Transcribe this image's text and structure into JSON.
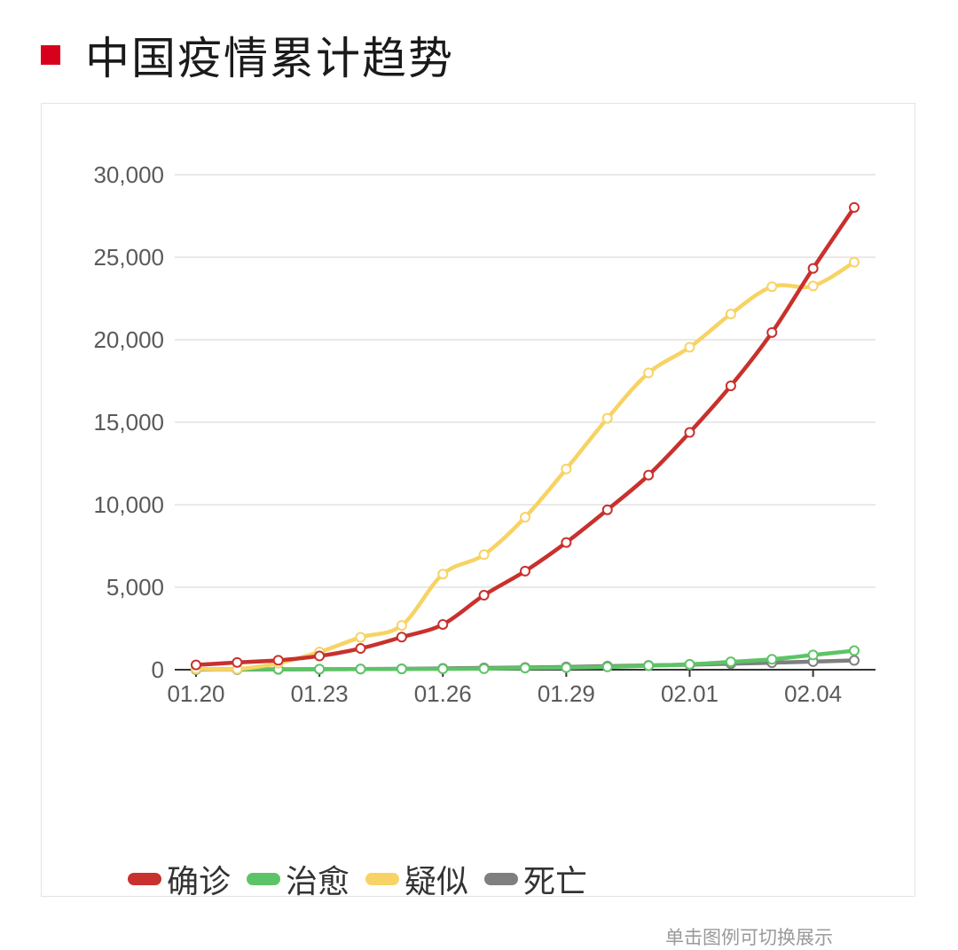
{
  "page": {
    "title": "中国疫情累计趋势",
    "accent_color": "#d9001b",
    "hint": "单击图例可切换展示"
  },
  "chart_data": {
    "type": "line",
    "x": [
      "01.20",
      "01.21",
      "01.22",
      "01.23",
      "01.24",
      "01.25",
      "01.26",
      "01.27",
      "01.28",
      "01.29",
      "01.30",
      "01.31",
      "02.01",
      "02.02",
      "02.03",
      "02.04",
      "02.05"
    ],
    "x_tick_labels": [
      "01.20",
      "01.23",
      "01.26",
      "01.29",
      "02.01",
      "02.04"
    ],
    "ylim": [
      0,
      30000
    ],
    "y_tick_labels": [
      "0",
      "5,000",
      "10,000",
      "15,000",
      "20,000",
      "25,000",
      "30,000"
    ],
    "y_ticks": [
      0,
      5000,
      10000,
      15000,
      20000,
      25000,
      30000
    ],
    "grid": true,
    "legend_position": "bottom-left",
    "series": [
      {
        "name": "确诊",
        "color": "#c8312d",
        "values": [
          291,
          440,
          571,
          830,
          1287,
          1975,
          2744,
          4515,
          5974,
          7711,
          9692,
          11791,
          14380,
          17205,
          20438,
          24324,
          28018
        ]
      },
      {
        "name": "治愈",
        "color": "#5cc466",
        "values": [
          25,
          25,
          28,
          34,
          38,
          49,
          51,
          60,
          103,
          124,
          171,
          243,
          328,
          475,
          632,
          892,
          1153
        ]
      },
      {
        "name": "疑似",
        "color": "#f7d365",
        "values": [
          54,
          37,
          393,
          1072,
          1965,
          2684,
          5794,
          6973,
          9239,
          12167,
          15238,
          17988,
          19544,
          21558,
          23214,
          23260,
          24702
        ]
      },
      {
        "name": "死亡",
        "color": "#7f7f7f",
        "values": [
          6,
          9,
          17,
          25,
          41,
          56,
          80,
          106,
          132,
          170,
          213,
          259,
          304,
          361,
          425,
          490,
          563
        ]
      }
    ]
  }
}
